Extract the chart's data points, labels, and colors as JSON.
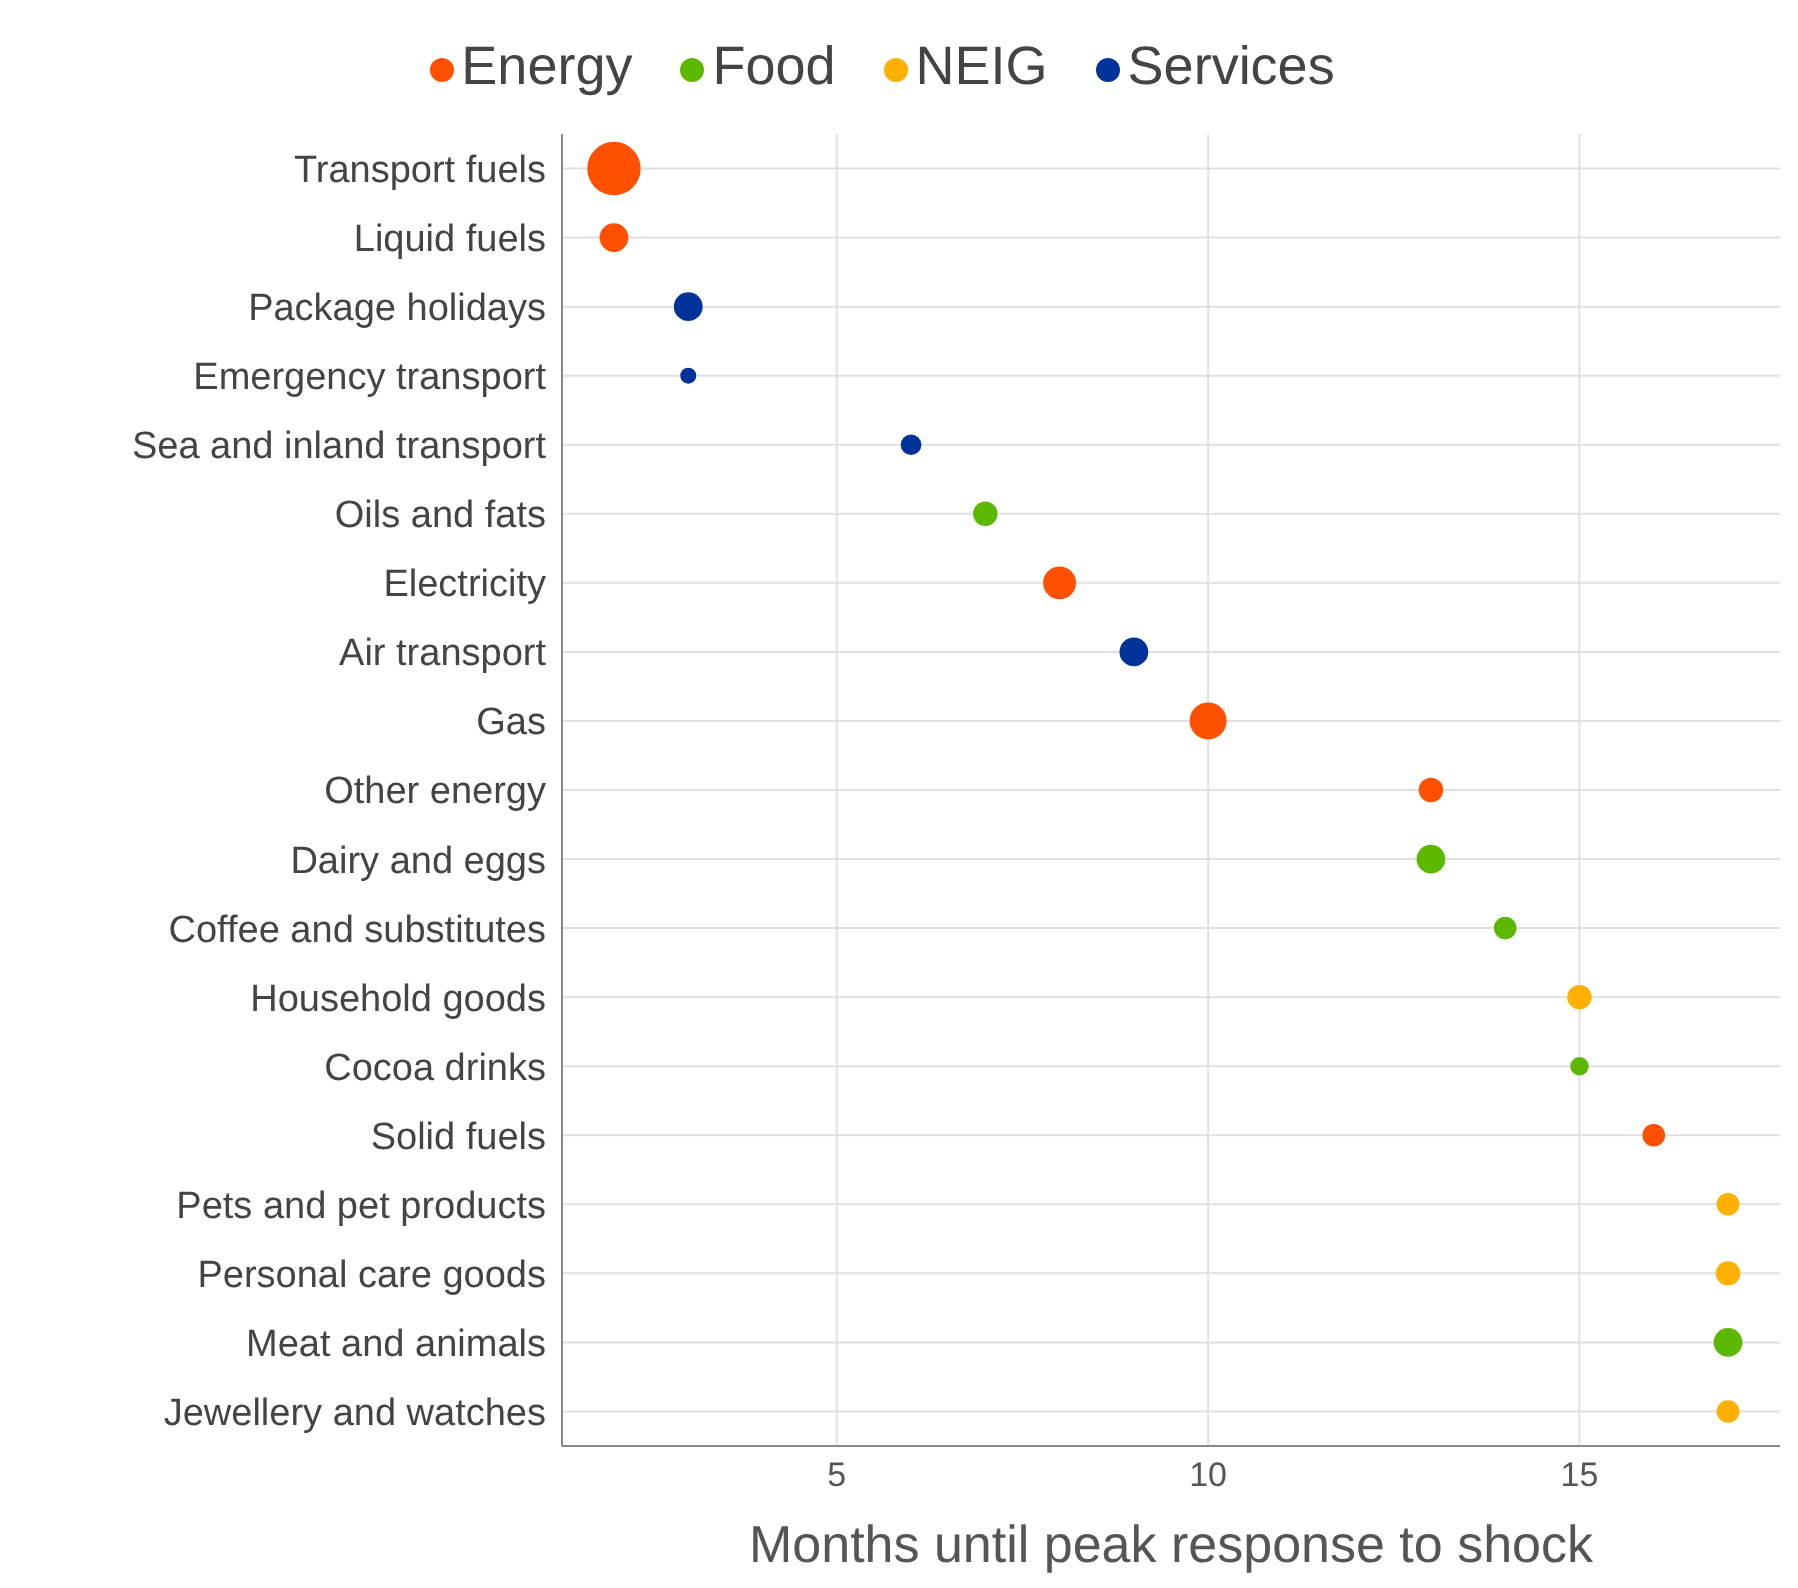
{
  "chart_data": {
    "type": "bubble",
    "orientation": "horizontal",
    "xlabel": "Months until peak response to shock",
    "categories": [
      "Transport fuels",
      "Liquid fuels",
      "Package holidays",
      "Emergency transport",
      "Sea and inland transport",
      "Oils and fats",
      "Electricity",
      "Air transport",
      "Gas",
      "Other energy",
      "Dairy and eggs",
      "Coffee and substitutes",
      "Household goods",
      "Cocoa drinks",
      "Solid fuels",
      "Pets and pet products",
      "Personal care goods",
      "Meat and animals",
      "Jewellery and watches"
    ],
    "series": [
      {
        "name": "Energy",
        "color": "#ff5000",
        "values": [
          2,
          2,
          null,
          null,
          null,
          null,
          8,
          null,
          10,
          13,
          null,
          null,
          null,
          null,
          16,
          null,
          null,
          null,
          null
        ],
        "sizes": [
          1,
          0.29,
          null,
          null,
          null,
          null,
          0.38,
          null,
          0.48,
          0.21,
          null,
          null,
          null,
          null,
          0.18,
          null,
          null,
          null,
          null
        ]
      },
      {
        "name": "Food",
        "color": "#5cb800",
        "values": [
          null,
          null,
          null,
          null,
          null,
          7,
          null,
          null,
          null,
          null,
          13,
          14,
          null,
          15,
          null,
          null,
          null,
          17,
          null
        ],
        "sizes": [
          null,
          null,
          null,
          null,
          null,
          0.21,
          null,
          null,
          null,
          null,
          0.29,
          0.18,
          null,
          0.12,
          null,
          null,
          null,
          0.29,
          null
        ]
      },
      {
        "name": "NEIG",
        "color": "#ffb000",
        "values": [
          null,
          null,
          null,
          null,
          null,
          null,
          null,
          null,
          null,
          null,
          null,
          null,
          15,
          null,
          null,
          17,
          17,
          null,
          17
        ],
        "sizes": [
          null,
          null,
          null,
          null,
          null,
          null,
          null,
          null,
          null,
          null,
          null,
          null,
          0.21,
          null,
          null,
          0.18,
          0.21,
          null,
          0.18
        ]
      },
      {
        "name": "Services",
        "color": "#003399",
        "values": [
          null,
          null,
          3,
          3,
          6,
          null,
          null,
          9,
          null,
          null,
          null,
          null,
          null,
          null,
          null,
          null,
          null,
          null,
          null
        ],
        "sizes": [
          null,
          null,
          0.29,
          0.09,
          0.15,
          null,
          null,
          0.29,
          null,
          null,
          null,
          null,
          null,
          null,
          null,
          null,
          null,
          null,
          null
        ]
      }
    ],
    "xlim": [
      1.3,
      17.7
    ],
    "xticks": [
      5,
      10,
      15
    ],
    "grid": true,
    "legend": "top"
  }
}
